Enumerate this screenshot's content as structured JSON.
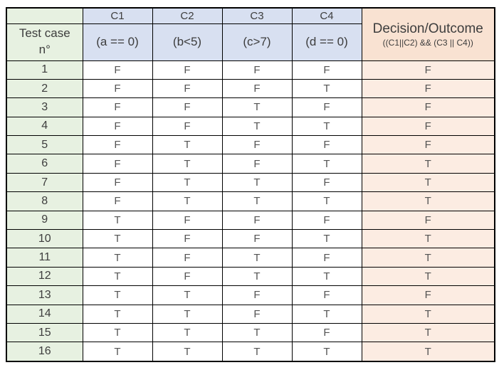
{
  "header": {
    "corner_label": "",
    "test_case_label_line1": "Test case",
    "test_case_label_line2": "n°",
    "conditions": [
      {
        "id": "C1",
        "expr": "(a == 0)"
      },
      {
        "id": "C2",
        "expr": "(b<5)"
      },
      {
        "id": "C3",
        "expr": "(c>7)"
      },
      {
        "id": "C4",
        "expr": "(d == 0)"
      }
    ],
    "decision": {
      "title": "Decision/Outcome",
      "formula": "((C1||C2) && (C3 || C4))"
    }
  },
  "rows": [
    {
      "n": "1",
      "values": [
        "F",
        "F",
        "F",
        "F"
      ],
      "decision": "F"
    },
    {
      "n": "2",
      "values": [
        "F",
        "F",
        "F",
        "T"
      ],
      "decision": "F"
    },
    {
      "n": "3",
      "values": [
        "F",
        "F",
        "T",
        "F"
      ],
      "decision": "F"
    },
    {
      "n": "4",
      "values": [
        "F",
        "F",
        "T",
        "T"
      ],
      "decision": "F"
    },
    {
      "n": "5",
      "values": [
        "F",
        "T",
        "F",
        "F"
      ],
      "decision": "F"
    },
    {
      "n": "6",
      "values": [
        "F",
        "T",
        "F",
        "T"
      ],
      "decision": "T"
    },
    {
      "n": "7",
      "values": [
        "F",
        "T",
        "T",
        "F"
      ],
      "decision": "T"
    },
    {
      "n": "8",
      "values": [
        "F",
        "T",
        "T",
        "T"
      ],
      "decision": "T"
    },
    {
      "n": "9",
      "values": [
        "T",
        "F",
        "F",
        "F"
      ],
      "decision": "F"
    },
    {
      "n": "10",
      "values": [
        "T",
        "F",
        "F",
        "T"
      ],
      "decision": "T"
    },
    {
      "n": "11",
      "values": [
        "T",
        "F",
        "T",
        "F"
      ],
      "decision": "T"
    },
    {
      "n": "12",
      "values": [
        "T",
        "F",
        "T",
        "T"
      ],
      "decision": "T"
    },
    {
      "n": "13",
      "values": [
        "T",
        "T",
        "F",
        "F"
      ],
      "decision": "F"
    },
    {
      "n": "14",
      "values": [
        "T",
        "T",
        "F",
        "T"
      ],
      "decision": "T"
    },
    {
      "n": "15",
      "values": [
        "T",
        "T",
        "T",
        "F"
      ],
      "decision": "T"
    },
    {
      "n": "16",
      "values": [
        "T",
        "T",
        "T",
        "T"
      ],
      "decision": "T"
    }
  ],
  "colors": {
    "test_case_fill": "#e7f1e1",
    "condition_fill": "#d8e0f1",
    "decision_header_fill": "#f9e2d2",
    "decision_row_fill": "#fcece2",
    "grid_border": "#000000",
    "header_text": "#3d3d3d",
    "value_text": "#545454"
  }
}
